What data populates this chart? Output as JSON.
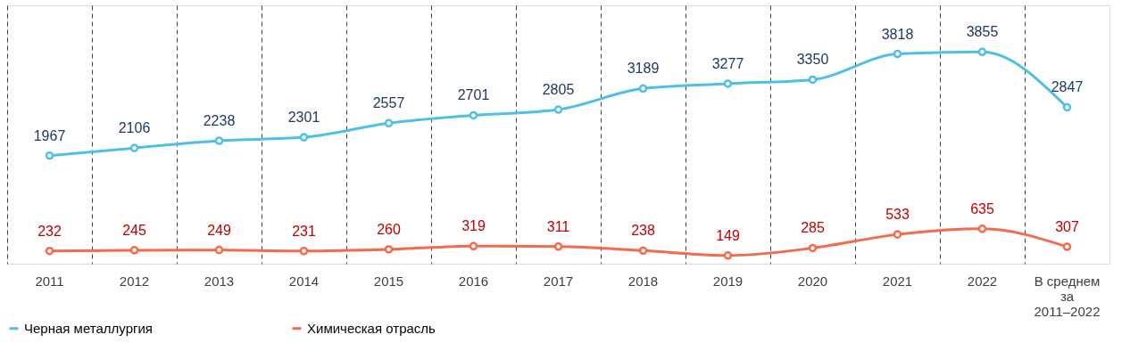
{
  "chart_data": {
    "type": "line",
    "categories": [
      "2011",
      "2012",
      "2013",
      "2014",
      "2015",
      "2016",
      "2017",
      "2018",
      "2019",
      "2020",
      "2021",
      "2022",
      "В среднем за 2011–2022"
    ],
    "series": [
      {
        "name": "Черная металлургия",
        "color": "#4ec0e8",
        "values": [
          1967,
          2106,
          2238,
          2301,
          2557,
          2701,
          2805,
          3189,
          3277,
          3350,
          3818,
          3855,
          2847
        ]
      },
      {
        "name": "Химическая отрасль",
        "color": "#f36a4c",
        "values": [
          232,
          245,
          249,
          231,
          260,
          319,
          311,
          238,
          149,
          285,
          533,
          635,
          307
        ]
      }
    ],
    "data_labels": true,
    "grid": "x",
    "legend": "bottom",
    "marker": "circle",
    "line_style": "solid"
  }
}
